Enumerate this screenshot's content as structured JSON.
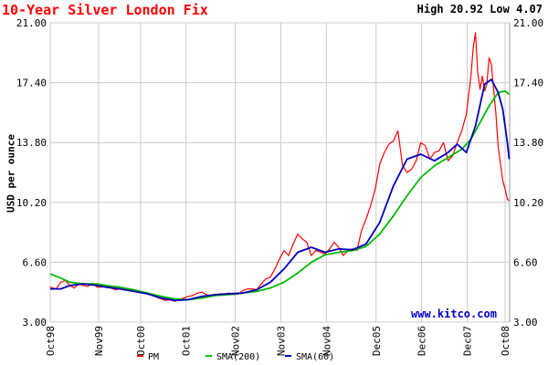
{
  "page": {
    "title": "10-Year Silver London Fix",
    "high_label": "High",
    "high_value": "20.92",
    "low_label": "Low",
    "low_value": "4.07",
    "watermark": "www.kitco.com"
  },
  "chart_data": {
    "type": "line",
    "title": "10-Year Silver London Fix",
    "xlabel": "",
    "ylabel": "USD per ounce",
    "ylim": [
      3.0,
      21.0
    ],
    "yticks": [
      "3.00",
      "6.60",
      "10.20",
      "13.80",
      "17.40",
      "21.00"
    ],
    "xlim": [
      1998.77,
      2008.85
    ],
    "xticks": [
      {
        "label": "Oct98",
        "x": 1998.75
      },
      {
        "label": "Nov99",
        "x": 1999.83
      },
      {
        "label": "Oct00",
        "x": 2000.75
      },
      {
        "label": "Oct01",
        "x": 2001.75
      },
      {
        "label": "Nov02",
        "x": 2002.83
      },
      {
        "label": "Nov03",
        "x": 2003.83
      },
      {
        "label": "Nov04",
        "x": 2004.83
      },
      {
        "label": "Dec05",
        "x": 2005.92
      },
      {
        "label": "Dec06",
        "x": 2006.92
      },
      {
        "label": "Dec07",
        "x": 2007.92
      },
      {
        "label": "Oct08",
        "x": 2008.75
      }
    ],
    "grid": true,
    "legend_position": "bottom",
    "series": [
      {
        "name": "PM",
        "color": "#ff0000",
        "x": [
          1998.77,
          1998.9,
          1999.0,
          1999.1,
          1999.2,
          1999.3,
          1999.4,
          1999.5,
          1999.6,
          1999.7,
          1999.8,
          1999.9,
          2000.0,
          2000.1,
          2000.2,
          2000.3,
          2000.4,
          2000.5,
          2000.6,
          2000.7,
          2000.8,
          2000.9,
          2001.0,
          2001.1,
          2001.2,
          2001.3,
          2001.4,
          2001.5,
          2001.6,
          2001.7,
          2001.8,
          2001.9,
          2002.0,
          2002.1,
          2002.2,
          2002.3,
          2002.4,
          2002.5,
          2002.6,
          2002.7,
          2002.8,
          2002.9,
          2003.0,
          2003.1,
          2003.2,
          2003.3,
          2003.4,
          2003.5,
          2003.6,
          2003.7,
          2003.8,
          2003.9,
          2004.0,
          2004.1,
          2004.2,
          2004.3,
          2004.4,
          2004.5,
          2004.6,
          2004.7,
          2004.8,
          2004.9,
          2005.0,
          2005.1,
          2005.2,
          2005.3,
          2005.4,
          2005.5,
          2005.6,
          2005.7,
          2005.8,
          2005.9,
          2006.0,
          2006.1,
          2006.2,
          2006.3,
          2006.4,
          2006.5,
          2006.6,
          2006.7,
          2006.8,
          2006.9,
          2007.0,
          2007.1,
          2007.2,
          2007.3,
          2007.4,
          2007.5,
          2007.6,
          2007.7,
          2007.8,
          2007.9,
          2008.0,
          2008.05,
          2008.1,
          2008.15,
          2008.2,
          2008.25,
          2008.3,
          2008.35,
          2008.4,
          2008.45,
          2008.5,
          2008.55,
          2008.6,
          2008.65,
          2008.7,
          2008.75,
          2008.8,
          2008.84
        ],
        "y": [
          5.1,
          5.0,
          5.4,
          5.5,
          5.2,
          5.05,
          5.3,
          5.2,
          5.15,
          5.35,
          5.1,
          5.1,
          5.2,
          5.05,
          4.95,
          5.0,
          4.95,
          4.9,
          4.9,
          4.85,
          4.75,
          4.7,
          4.65,
          4.5,
          4.4,
          4.3,
          4.35,
          4.25,
          4.35,
          4.45,
          4.55,
          4.6,
          4.75,
          4.8,
          4.65,
          4.55,
          4.6,
          4.7,
          4.7,
          4.75,
          4.65,
          4.7,
          4.9,
          5.0,
          5.0,
          4.95,
          5.3,
          5.6,
          5.7,
          6.2,
          6.8,
          7.3,
          7.0,
          7.7,
          8.3,
          8.0,
          7.8,
          7.0,
          7.3,
          7.2,
          7.1,
          7.4,
          7.8,
          7.5,
          7.0,
          7.3,
          7.4,
          7.3,
          8.5,
          9.2,
          10.0,
          11.0,
          12.5,
          13.2,
          13.7,
          13.9,
          14.5,
          12.4,
          12.0,
          12.2,
          12.7,
          13.8,
          13.6,
          12.8,
          13.2,
          13.3,
          13.8,
          12.7,
          13.0,
          13.8,
          14.5,
          15.5,
          17.8,
          19.5,
          20.4,
          18.0,
          17.0,
          17.8,
          16.9,
          17.3,
          18.9,
          18.5,
          17.0,
          15.5,
          13.5,
          12.5,
          11.5,
          11.0,
          10.4,
          10.3
        ]
      },
      {
        "name": "SMA(200)",
        "color": "#00bb00",
        "x": [
          1998.77,
          1999.0,
          1999.2,
          1999.5,
          1999.8,
          2000.0,
          2000.3,
          2000.6,
          2000.9,
          2001.2,
          2001.5,
          2001.8,
          2002.1,
          2002.4,
          2002.7,
          2003.0,
          2003.3,
          2003.6,
          2003.9,
          2004.2,
          2004.5,
          2004.8,
          2005.1,
          2005.4,
          2005.7,
          2006.0,
          2006.3,
          2006.6,
          2006.9,
          2007.2,
          2007.5,
          2007.8,
          2008.0,
          2008.2,
          2008.4,
          2008.6,
          2008.75,
          2008.84
        ],
        "y": [
          5.9,
          5.65,
          5.4,
          5.3,
          5.3,
          5.2,
          5.1,
          4.95,
          4.75,
          4.55,
          4.4,
          4.35,
          4.45,
          4.6,
          4.65,
          4.75,
          4.85,
          5.05,
          5.4,
          5.95,
          6.6,
          7.05,
          7.2,
          7.3,
          7.55,
          8.3,
          9.4,
          10.6,
          11.7,
          12.4,
          12.9,
          13.4,
          14.0,
          15.0,
          16.0,
          16.8,
          16.9,
          16.7
        ]
      },
      {
        "name": "SMA(60)",
        "color": "#0000bb",
        "x": [
          1998.77,
          1999.0,
          1999.2,
          1999.5,
          1999.8,
          2000.0,
          2000.3,
          2000.6,
          2000.9,
          2001.2,
          2001.5,
          2001.8,
          2002.1,
          2002.4,
          2002.7,
          2003.0,
          2003.3,
          2003.6,
          2003.9,
          2004.2,
          2004.5,
          2004.8,
          2005.1,
          2005.4,
          2005.7,
          2006.0,
          2006.3,
          2006.6,
          2006.9,
          2007.2,
          2007.5,
          2007.7,
          2007.9,
          2008.1,
          2008.3,
          2008.45,
          2008.6,
          2008.7,
          2008.8,
          2008.84
        ],
        "y": [
          5.0,
          5.0,
          5.2,
          5.3,
          5.2,
          5.1,
          5.0,
          4.85,
          4.7,
          4.45,
          4.3,
          4.35,
          4.55,
          4.65,
          4.7,
          4.75,
          4.95,
          5.4,
          6.2,
          7.2,
          7.5,
          7.2,
          7.4,
          7.35,
          7.7,
          9.0,
          11.2,
          12.8,
          13.1,
          12.7,
          13.2,
          13.7,
          13.2,
          14.8,
          17.3,
          17.6,
          16.8,
          15.8,
          13.8,
          12.8
        ]
      }
    ]
  }
}
